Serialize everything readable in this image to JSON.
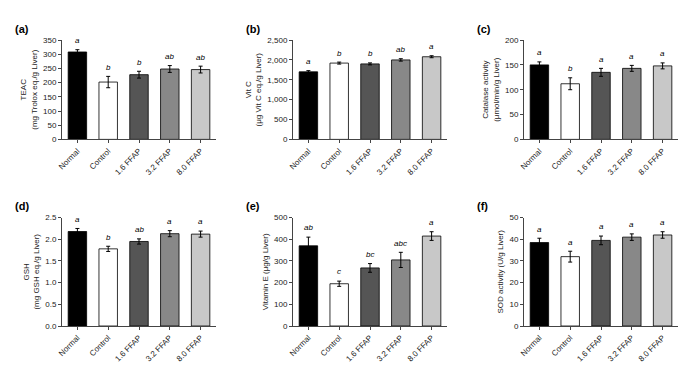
{
  "chart_data": [
    {
      "type": "bar",
      "title": "(a)",
      "ylabel": "TEAC\n(mg Trolox eq./g Liver)",
      "categories": [
        "Normal",
        "Control",
        "1.6 FFAP",
        "3.2 FFAP",
        "8.0 FFAP"
      ],
      "values": [
        308,
        202,
        228,
        248,
        246
      ],
      "errors": [
        8,
        20,
        12,
        12,
        12
      ],
      "colors": [
        "#000000",
        "#ffffff",
        "#555555",
        "#888888",
        "#c8c8c8"
      ],
      "annotations": [
        "a",
        "b",
        "b",
        "ab",
        "ab"
      ],
      "ylim": [
        0,
        350
      ],
      "yticks": [
        0,
        50,
        100,
        150,
        200,
        250,
        300,
        350
      ],
      "grid": false
    },
    {
      "type": "bar",
      "title": "(b)",
      "ylabel": "Vit C\n(μg Vit C eq./g Liver)",
      "categories": [
        "Normal",
        "Control",
        "1.6 FFAP",
        "3.2 FFAP",
        "8.0 FFAP"
      ],
      "values": [
        1700,
        1920,
        1900,
        2000,
        2080
      ],
      "errors": [
        30,
        25,
        25,
        30,
        25
      ],
      "colors": [
        "#000000",
        "#ffffff",
        "#555555",
        "#888888",
        "#c8c8c8"
      ],
      "annotations": [
        "a",
        "b",
        "b",
        "ab",
        "a"
      ],
      "ylim": [
        0,
        2500
      ],
      "yticks": [
        0,
        500,
        {
          "value": 1000,
          "label": "1,000"
        },
        {
          "value": 1500,
          "label": "1,500"
        },
        {
          "value": 2000,
          "label": "2,000"
        },
        {
          "value": 2500,
          "label": "2,500"
        }
      ],
      "grid": false
    },
    {
      "type": "bar",
      "title": "(c)",
      "ylabel": "Catalase activity\n(μmol/min/g Liver)",
      "categories": [
        "Normal",
        "Control",
        "1.6 FFAP",
        "3.2 FFAP",
        "8.0 FFAP"
      ],
      "values": [
        150,
        112,
        135,
        143,
        148
      ],
      "errors": [
        6,
        12,
        8,
        6,
        6
      ],
      "colors": [
        "#000000",
        "#ffffff",
        "#555555",
        "#888888",
        "#c8c8c8"
      ],
      "annotations": [
        "a",
        "b",
        "a",
        "a",
        "a"
      ],
      "ylim": [
        0,
        200
      ],
      "yticks": [
        0,
        50,
        100,
        150,
        200
      ],
      "grid": false
    },
    {
      "type": "bar",
      "title": "(d)",
      "ylabel": "GSH\n(mg GSH eq./g Liver)",
      "categories": [
        "Normal",
        "Control",
        "1.6 FFAP",
        "3.2 FFAP",
        "8.0 FFAP"
      ],
      "values": [
        2.18,
        1.78,
        1.95,
        2.13,
        2.12
      ],
      "errors": [
        0.07,
        0.06,
        0.06,
        0.07,
        0.07
      ],
      "colors": [
        "#000000",
        "#ffffff",
        "#555555",
        "#888888",
        "#c8c8c8"
      ],
      "annotations": [
        "a",
        "b",
        "ab",
        "a",
        "a"
      ],
      "ylim": [
        0,
        2.5
      ],
      "yticks": [
        {
          "value": 0,
          "label": "0.0"
        },
        0.5,
        {
          "value": 1,
          "label": "1.0"
        },
        1.5,
        {
          "value": 2,
          "label": "2.0"
        },
        2.5
      ],
      "grid": false
    },
    {
      "type": "bar",
      "title": "(e)",
      "ylabel": "Vitamin E (μg/g Liver)",
      "categories": [
        "Normal",
        "Control",
        "1.6 FFAP",
        "3.2 FFAP",
        "8.0 FFAP"
      ],
      "values": [
        370,
        195,
        268,
        305,
        415
      ],
      "errors": [
        40,
        12,
        20,
        35,
        20
      ],
      "colors": [
        "#000000",
        "#ffffff",
        "#555555",
        "#888888",
        "#c8c8c8"
      ],
      "annotations": [
        "ab",
        "c",
        "bc",
        "abc",
        "a"
      ],
      "ylim": [
        0,
        500
      ],
      "yticks": [
        0,
        100,
        200,
        300,
        400,
        500
      ],
      "grid": false
    },
    {
      "type": "bar",
      "title": "(f)",
      "ylabel": "SOD activity (U/g Liver)",
      "categories": [
        "Normal",
        "Control",
        "1.6 FFAP",
        "3.2 FFAP",
        "8.0 FFAP"
      ],
      "values": [
        38.5,
        32,
        39.5,
        41,
        42
      ],
      "errors": [
        2,
        2.5,
        2,
        1.5,
        1.5
      ],
      "colors": [
        "#000000",
        "#ffffff",
        "#555555",
        "#888888",
        "#c8c8c8"
      ],
      "annotations": [
        "a",
        "a",
        "a",
        "a",
        "a"
      ],
      "ylim": [
        0,
        50
      ],
      "yticks": [
        0,
        10,
        20,
        30,
        40,
        50
      ],
      "grid": false
    }
  ]
}
